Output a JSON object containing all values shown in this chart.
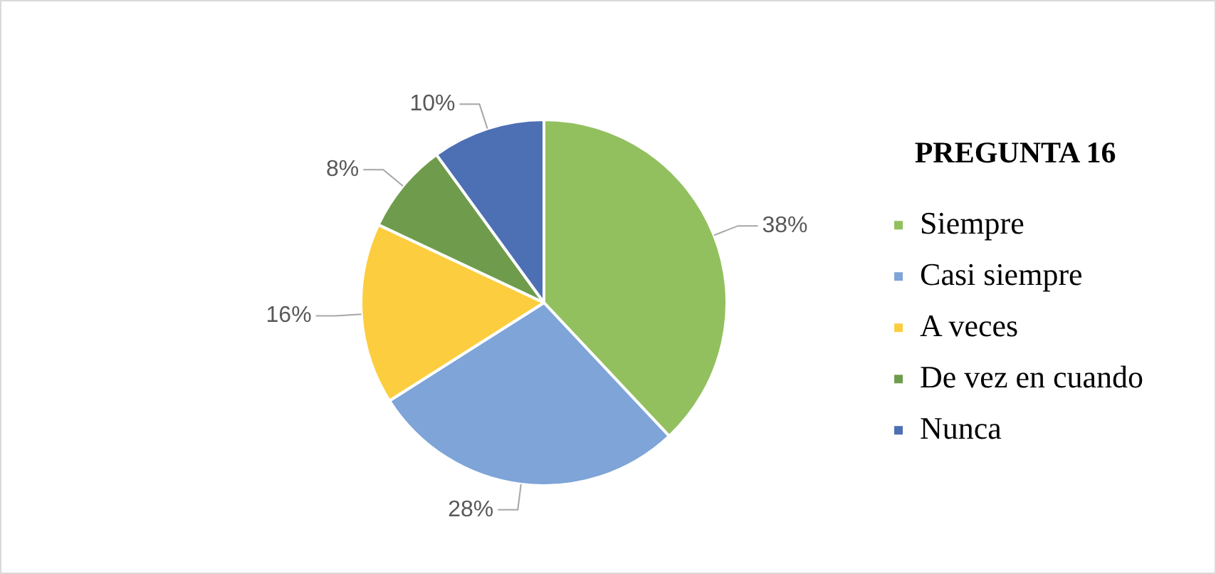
{
  "chart_data": {
    "type": "pie",
    "title": "PREGUNTA 16",
    "categories": [
      "Siempre",
      "Casi siempre",
      "A veces",
      "De vez en cuando",
      "Nunca"
    ],
    "values": [
      38,
      28,
      16,
      8,
      10
    ],
    "colors": [
      "#92c05e",
      "#7ea4d8",
      "#fccd3e",
      "#6f9c4c",
      "#4d6fb4"
    ],
    "value_labels": [
      "38%",
      "28%",
      "16%",
      "8%",
      "10%"
    ],
    "legend": "right"
  }
}
